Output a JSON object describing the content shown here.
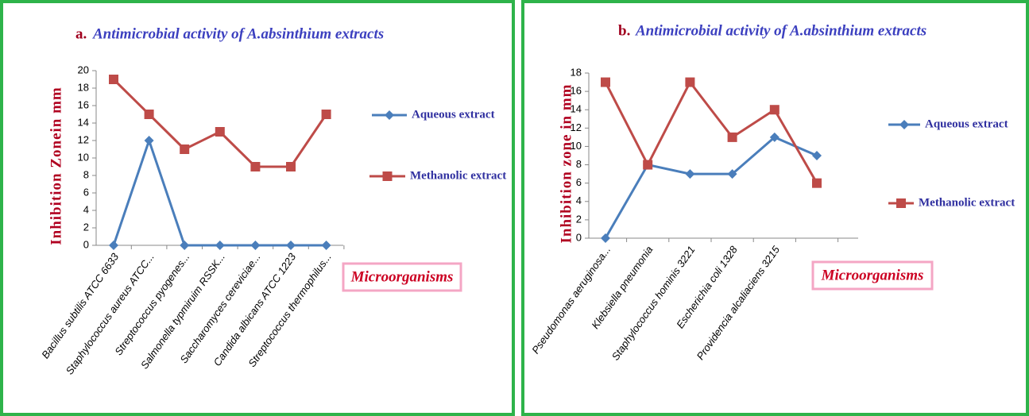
{
  "chart_data": [
    {
      "type": "line",
      "panel_label": "a.",
      "title": "Antimicrobial activity of A.absinthium extracts",
      "y_label": "Inhibition Zonein mm",
      "annotation": "Microorganisms",
      "categories": [
        "Bacillus subtilis ATCC 6633",
        "Staphylococcus aureus ATCC...",
        "Streptococcus pyogenes...",
        "Salmonella typmiruim RSSK...",
        "Saccharomyces cereviciae...",
        "Candida albicans ATCC 1223",
        "Streptococcus thermophilus..."
      ],
      "series": [
        {
          "name": "Aqueous extract",
          "color": "#4a7ebb",
          "marker": "diamond",
          "values": [
            0,
            12,
            0,
            0,
            0,
            0,
            0
          ]
        },
        {
          "name": "Methanolic extract",
          "color": "#be4b48",
          "marker": "square",
          "values": [
            19,
            15,
            11,
            13,
            9,
            9,
            15
          ]
        }
      ],
      "ylim": [
        0,
        20
      ],
      "yticks": [
        0,
        2,
        4,
        6,
        8,
        10,
        12,
        14,
        16,
        18,
        20
      ]
    },
    {
      "type": "line",
      "panel_label": "b.",
      "title": "Antimicrobial activity of A.absinthium extracts",
      "y_label": "Inhibition zone in mm",
      "annotation": "Microorganisms",
      "categories": [
        "Pseudomonas aeruginosa...",
        "Klebsiella pneumonia",
        "Staphylococcus hominis 3221",
        "Escherichia coli 1328",
        "Providencia alcaliaciens 3215",
        null
      ],
      "series": [
        {
          "name": "Aqueous extract",
          "color": "#4a7ebb",
          "marker": "diamond",
          "values": [
            0,
            8,
            7,
            7,
            11,
            9
          ]
        },
        {
          "name": "Methanolic extract",
          "color": "#be4b48",
          "marker": "square",
          "values": [
            17,
            8,
            17,
            11,
            14,
            6
          ]
        }
      ],
      "ylim": [
        0,
        18
      ],
      "yticks": [
        0,
        2,
        4,
        6,
        8,
        10,
        12,
        14,
        16,
        18
      ]
    }
  ]
}
